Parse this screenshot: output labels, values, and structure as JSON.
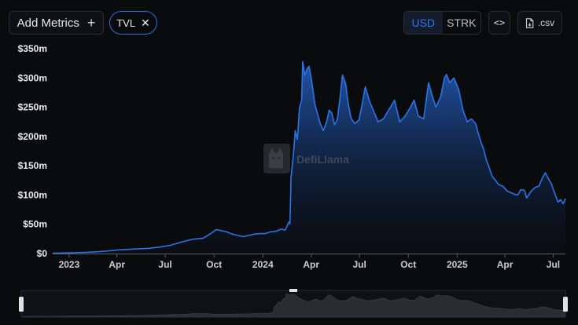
{
  "toolbar": {
    "add_metrics_label": "Add Metrics",
    "plus_icon": "plus-icon",
    "tvl_chip_label": "TVL",
    "close_icon": "close-icon",
    "currency_options": [
      "USD",
      "STRK"
    ],
    "currency_selected": "USD",
    "embed_label": "<>",
    "csv_label": ".csv",
    "file_icon": "file-icon"
  },
  "colors": {
    "accent": "#2f76f5",
    "line": "#2a73e8",
    "background": "#0a0b0d"
  },
  "watermark": {
    "text": "DefiLlama",
    "icon": "llama-logo-icon"
  },
  "chart_data": {
    "type": "area",
    "title": "",
    "xlabel": "",
    "ylabel": "",
    "y_ticks": [
      "$0",
      "$50m",
      "$100m",
      "$150m",
      "$200m",
      "$250m",
      "$300m",
      "$350m"
    ],
    "x_ticks": [
      {
        "label": "2023",
        "date": "2023-01-01",
        "bold": true
      },
      {
        "label": "Apr",
        "date": "2023-04-01"
      },
      {
        "label": "Jul",
        "date": "2023-07-01"
      },
      {
        "label": "Oct",
        "date": "2023-10-01"
      },
      {
        "label": "2024",
        "date": "2024-01-01",
        "bold": true
      },
      {
        "label": "Apr",
        "date": "2024-04-01"
      },
      {
        "label": "Jul",
        "date": "2024-07-01"
      },
      {
        "label": "Oct",
        "date": "2024-10-01"
      },
      {
        "label": "2025",
        "date": "2025-01-01",
        "bold": true
      },
      {
        "label": "Apr",
        "date": "2025-04-01"
      },
      {
        "label": "Jul",
        "date": "2025-07-01"
      }
    ],
    "ylim": [
      0,
      350
    ],
    "xlim": [
      "2022-12-01",
      "2025-07-24"
    ],
    "grid": false,
    "series": [
      {
        "unit": "USD millions",
        "points": [
          [
            "2022-12-01",
            0.5
          ],
          [
            "2022-12-20",
            1
          ],
          [
            "2023-01-10",
            1.5
          ],
          [
            "2023-02-01",
            2
          ],
          [
            "2023-02-20",
            3
          ],
          [
            "2023-03-10",
            4
          ],
          [
            "2023-04-01",
            6
          ],
          [
            "2023-04-20",
            7
          ],
          [
            "2023-05-10",
            8
          ],
          [
            "2023-06-01",
            9
          ],
          [
            "2023-06-20",
            11
          ],
          [
            "2023-07-10",
            14
          ],
          [
            "2023-07-25",
            18
          ],
          [
            "2023-08-10",
            22
          ],
          [
            "2023-08-25",
            25
          ],
          [
            "2023-09-10",
            26
          ],
          [
            "2023-09-25",
            34
          ],
          [
            "2023-10-05",
            41
          ],
          [
            "2023-10-15",
            39
          ],
          [
            "2023-10-25",
            37
          ],
          [
            "2023-11-05",
            33
          ],
          [
            "2023-11-15",
            31
          ],
          [
            "2023-11-25",
            29
          ],
          [
            "2023-12-05",
            31
          ],
          [
            "2023-12-15",
            33
          ],
          [
            "2023-12-25",
            34
          ],
          [
            "2024-01-05",
            34
          ],
          [
            "2024-01-15",
            37
          ],
          [
            "2024-01-25",
            38
          ],
          [
            "2024-02-05",
            42
          ],
          [
            "2024-02-12",
            40
          ],
          [
            "2024-02-19",
            54
          ],
          [
            "2024-02-21",
            51
          ],
          [
            "2024-02-23",
            130
          ],
          [
            "2024-02-27",
            165
          ],
          [
            "2024-03-02",
            210
          ],
          [
            "2024-03-06",
            195
          ],
          [
            "2024-03-10",
            250
          ],
          [
            "2024-03-14",
            262
          ],
          [
            "2024-03-16",
            328
          ],
          [
            "2024-03-20",
            305
          ],
          [
            "2024-03-24",
            315
          ],
          [
            "2024-03-28",
            320
          ],
          [
            "2024-04-01",
            300
          ],
          [
            "2024-04-05",
            275
          ],
          [
            "2024-04-08",
            255
          ],
          [
            "2024-04-12",
            242
          ],
          [
            "2024-04-18",
            222
          ],
          [
            "2024-04-24",
            210
          ],
          [
            "2024-04-30",
            225
          ],
          [
            "2024-05-05",
            245
          ],
          [
            "2024-05-10",
            240
          ],
          [
            "2024-05-15",
            220
          ],
          [
            "2024-05-20",
            228
          ],
          [
            "2024-05-25",
            263
          ],
          [
            "2024-05-30",
            305
          ],
          [
            "2024-06-05",
            290
          ],
          [
            "2024-06-10",
            255
          ],
          [
            "2024-06-15",
            232
          ],
          [
            "2024-06-22",
            222
          ],
          [
            "2024-06-30",
            228
          ],
          [
            "2024-07-05",
            250
          ],
          [
            "2024-07-12",
            285
          ],
          [
            "2024-07-20",
            260
          ],
          [
            "2024-07-28",
            243
          ],
          [
            "2024-08-05",
            225
          ],
          [
            "2024-08-15",
            230
          ],
          [
            "2024-08-25",
            245
          ],
          [
            "2024-09-05",
            262
          ],
          [
            "2024-09-15",
            225
          ],
          [
            "2024-09-25",
            235
          ],
          [
            "2024-10-05",
            250
          ],
          [
            "2024-10-12",
            262
          ],
          [
            "2024-10-20",
            235
          ],
          [
            "2024-10-30",
            230
          ],
          [
            "2024-11-08",
            292
          ],
          [
            "2024-11-15",
            270
          ],
          [
            "2024-11-22",
            250
          ],
          [
            "2024-12-01",
            268
          ],
          [
            "2024-12-08",
            300
          ],
          [
            "2024-12-12",
            306
          ],
          [
            "2024-12-18",
            292
          ],
          [
            "2024-12-26",
            300
          ],
          [
            "2025-01-04",
            280
          ],
          [
            "2025-01-12",
            245
          ],
          [
            "2025-01-20",
            225
          ],
          [
            "2025-01-28",
            230
          ],
          [
            "2025-02-05",
            222
          ],
          [
            "2025-02-10",
            205
          ],
          [
            "2025-02-15",
            190
          ],
          [
            "2025-02-20",
            178
          ],
          [
            "2025-02-25",
            160
          ],
          [
            "2025-03-02",
            148
          ],
          [
            "2025-03-08",
            132
          ],
          [
            "2025-03-14",
            125
          ],
          [
            "2025-03-20",
            118
          ],
          [
            "2025-03-28",
            115
          ],
          [
            "2025-04-05",
            107
          ],
          [
            "2025-04-12",
            104
          ],
          [
            "2025-04-20",
            101
          ],
          [
            "2025-04-25",
            100
          ],
          [
            "2025-05-01",
            109
          ],
          [
            "2025-05-08",
            108
          ],
          [
            "2025-05-12",
            95
          ],
          [
            "2025-05-20",
            106
          ],
          [
            "2025-05-28",
            113
          ],
          [
            "2025-06-04",
            115
          ],
          [
            "2025-06-10",
            128
          ],
          [
            "2025-06-16",
            138
          ],
          [
            "2025-06-22",
            128
          ],
          [
            "2025-06-28",
            118
          ],
          [
            "2025-07-01",
            110
          ],
          [
            "2025-07-05",
            100
          ],
          [
            "2025-07-10",
            88
          ],
          [
            "2025-07-15",
            92
          ],
          [
            "2025-07-20",
            85
          ],
          [
            "2025-07-24",
            94
          ]
        ]
      }
    ]
  },
  "brush_window": [
    "2022-12-01",
    "2025-07-24"
  ]
}
